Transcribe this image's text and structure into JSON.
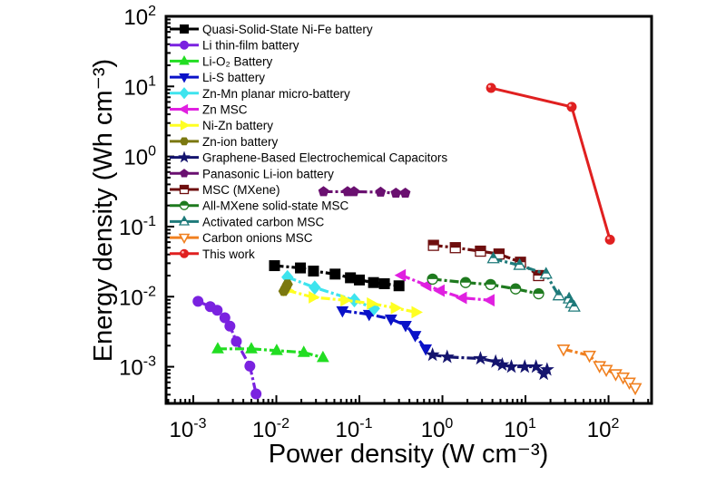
{
  "chart_data": {
    "type": "scatter",
    "title": "",
    "xlabel": "Power density (W cm⁻³)",
    "ylabel": "Energy density (Wh cm⁻³)",
    "xscale": "log",
    "yscale": "log",
    "xlim": [
      0.00047,
      330
    ],
    "ylim": [
      0.0003,
      100
    ],
    "grid": false,
    "legend_position": "top-left",
    "xticks": [
      {
        "base": "10",
        "exp": "-3",
        "value": 0.001
      },
      {
        "base": "10",
        "exp": "-2",
        "value": 0.01
      },
      {
        "base": "10",
        "exp": "-1",
        "value": 0.1
      },
      {
        "base": "10",
        "exp": "0",
        "value": 1
      },
      {
        "base": "10",
        "exp": "1",
        "value": 10
      },
      {
        "base": "10",
        "exp": "2",
        "value": 100
      }
    ],
    "yticks": [
      {
        "base": "10",
        "exp": "-3",
        "value": 0.001
      },
      {
        "base": "10",
        "exp": "-2",
        "value": 0.01
      },
      {
        "base": "10",
        "exp": "-1",
        "value": 0.1
      },
      {
        "base": "10",
        "exp": "0",
        "value": 1
      },
      {
        "base": "10",
        "exp": "1",
        "value": 10
      },
      {
        "base": "10",
        "exp": "2",
        "value": 100
      }
    ],
    "series": [
      {
        "name": "Quasi-Solid-State Ni-Fe battery",
        "color": "#000000",
        "marker": "square",
        "x": [
          0.0095,
          0.0195,
          0.028,
          0.051,
          0.078,
          0.1,
          0.148,
          0.2,
          0.3
        ],
        "y": [
          0.0277,
          0.0257,
          0.0232,
          0.021,
          0.0186,
          0.0173,
          0.0159,
          0.0153,
          0.0143
        ]
      },
      {
        "name": "Li thin-film battery",
        "color": "#7a22e0",
        "marker": "circle",
        "x": [
          0.00114,
          0.0016,
          0.00194,
          0.0024,
          0.00276,
          0.0033,
          0.0048,
          0.0057
        ],
        "y": [
          0.0086,
          0.0072,
          0.0064,
          0.005,
          0.0038,
          0.0023,
          0.00102,
          0.00041
        ]
      },
      {
        "name": "Li-O₂ Battery",
        "color": "#22dd22",
        "marker": "triangle-up",
        "x": [
          0.00197,
          0.005,
          0.0101,
          0.0214,
          0.0364
        ],
        "y": [
          0.0018,
          0.0018,
          0.0017,
          0.0016,
          0.00135
        ]
      },
      {
        "name": "Li-S battery",
        "color": "#0a12c8",
        "marker": "triangle-down",
        "x": [
          0.0625,
          0.131,
          0.24,
          0.36,
          0.47,
          0.63
        ],
        "y": [
          0.0063,
          0.0056,
          0.0048,
          0.0039,
          0.0028,
          0.0018
        ]
      },
      {
        "name": "Zn-Mn planar micro-battery",
        "color": "#3ee4ee",
        "marker": "diamond",
        "x": [
          0.0136,
          0.029,
          0.087,
          0.15
        ],
        "y": [
          0.019,
          0.0135,
          0.0089,
          0.0068
        ]
      },
      {
        "name": "Zn MSC",
        "color": "#e020e0",
        "marker": "triangle-left",
        "x": [
          0.32,
          0.65,
          0.94,
          1.74,
          3.75
        ],
        "y": [
          0.0202,
          0.0145,
          0.0122,
          0.0096,
          0.0089
        ]
      },
      {
        "name": "Ni-Zn battery",
        "color": "#ffff22",
        "marker": "triangle-right",
        "x": [
          0.0136,
          0.0277,
          0.067,
          0.139,
          0.27,
          0.48
        ],
        "y": [
          0.0123,
          0.0098,
          0.0089,
          0.008,
          0.0069,
          0.006
        ]
      },
      {
        "name": "Zn-ion battery",
        "color": "#7b7810",
        "marker": "hexagon",
        "x": [
          0.0123,
          0.013,
          0.0136
        ],
        "y": [
          0.012,
          0.0135,
          0.015
        ]
      },
      {
        "name": "Graphene-Based Electrochemical Capacitors",
        "color": "#14146e",
        "marker": "star",
        "x": [
          0.76,
          1.14,
          2.87,
          4.37,
          5.25,
          6.76,
          9.8,
          13.4,
          16.6,
          18.2
        ],
        "y": [
          0.00148,
          0.00138,
          0.00131,
          0.00118,
          0.00107,
          0.001,
          0.001,
          0.001,
          0.00079,
          0.00091
        ]
      },
      {
        "name": "Panasonic Li-ion battery",
        "color": "#6a1070",
        "marker": "pentagon",
        "x": [
          0.037,
          0.072,
          0.086,
          0.18,
          0.275,
          0.357
        ],
        "y": [
          0.315,
          0.315,
          0.315,
          0.31,
          0.3,
          0.3
        ]
      },
      {
        "name": "MSC (MXene)",
        "color": "#6e0e0e",
        "marker": "half-square",
        "x": [
          0.78,
          1.43,
          2.87,
          4.8,
          8.7,
          14.4
        ],
        "y": [
          0.054,
          0.05,
          0.0446,
          0.0406,
          0.031,
          0.02
        ]
      },
      {
        "name": "All-MXene solid-state MSC",
        "color": "#1e7a1e",
        "marker": "half-circle",
        "x": [
          0.76,
          1.9,
          3.8,
          7.6,
          14.4
        ],
        "y": [
          0.0178,
          0.0159,
          0.0149,
          0.0129,
          0.011
        ]
      },
      {
        "name": "Activated carbon MSC",
        "color": "#1e7a7a",
        "marker": "half-triangle",
        "x": [
          4.1,
          8.5,
          17.7,
          25.2,
          33.5,
          35.6,
          38.6
        ],
        "y": [
          0.0348,
          0.028,
          0.021,
          0.0103,
          0.0093,
          0.008,
          0.0071
        ]
      },
      {
        "name": "Carbon onions MSC",
        "color": "#f08020",
        "marker": "open-triangle-down",
        "x": [
          28.7,
          59,
          78,
          94,
          122,
          150,
          178,
          210
        ],
        "y": [
          0.00178,
          0.00145,
          0.00103,
          0.00091,
          0.00079,
          0.00071,
          0.0006,
          0.0005
        ]
      },
      {
        "name": "This work",
        "color": "#e02020",
        "marker": "ball",
        "x": [
          3.85,
          36,
          104
        ],
        "y": [
          9.5,
          5.1,
          0.065
        ]
      }
    ]
  }
}
